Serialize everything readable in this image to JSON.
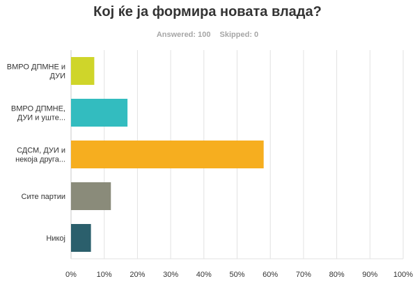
{
  "chart_data": {
    "type": "bar",
    "orientation": "horizontal",
    "title": "Кој ќе ја формира новата влада?",
    "answered_label": "Answered: 100",
    "skipped_label": "Skipped: 0",
    "categories": [
      [
        "ВМРО ДПМНЕ и",
        "ДУИ"
      ],
      [
        "ВМРО ДПМНЕ,",
        "ДУИ и уште..."
      ],
      [
        "СДСМ, ДУИ и",
        "некоја друга..."
      ],
      [
        "Сите партии"
      ],
      [
        "Никој"
      ]
    ],
    "values": [
      7,
      17,
      58,
      12,
      6
    ],
    "colors": [
      "#cfd52a",
      "#33bcbf",
      "#f6ae1f",
      "#8a8b7a",
      "#2b5f6c"
    ],
    "xlim": [
      0,
      100
    ],
    "xticks": [
      "0%",
      "10%",
      "20%",
      "30%",
      "40%",
      "50%",
      "60%",
      "70%",
      "80%",
      "90%",
      "100%"
    ],
    "grid": true
  }
}
